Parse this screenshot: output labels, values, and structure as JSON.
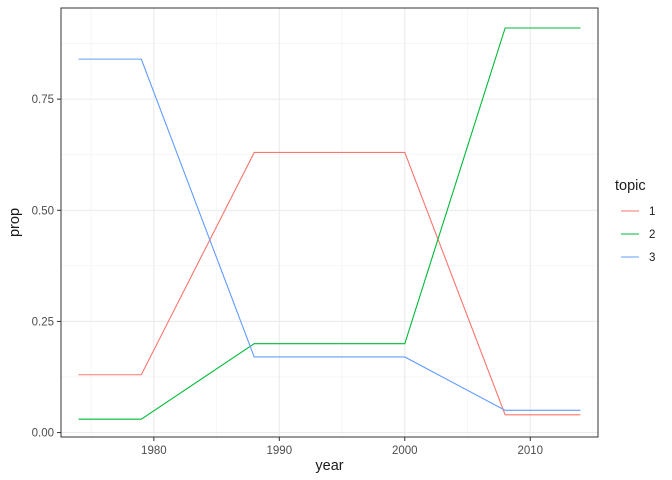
{
  "chart_data": {
    "type": "line",
    "xlabel": "year",
    "ylabel": "prop",
    "xlim": [
      1972.6,
      2015.4
    ],
    "ylim": [
      -0.01,
      0.955
    ],
    "x_ticks": [
      1980,
      1990,
      2000,
      2010
    ],
    "y_ticks": [
      0.0,
      0.25,
      0.5,
      0.75
    ],
    "x_tick_labels": [
      "1980",
      "1990",
      "2000",
      "2010"
    ],
    "y_tick_labels": [
      "0.00",
      "0.25",
      "0.50",
      "0.75"
    ],
    "x": [
      1974,
      1979,
      1988,
      2000,
      2008,
      2014
    ],
    "grid": true,
    "legend": {
      "title": "topic",
      "position": "right"
    },
    "series": [
      {
        "name": "1",
        "color": "#F8766D",
        "values": [
          0.13,
          0.13,
          0.63,
          0.63,
          0.04,
          0.04
        ]
      },
      {
        "name": "2",
        "color": "#00BA38",
        "values": [
          0.03,
          0.03,
          0.2,
          0.2,
          0.91,
          0.91
        ]
      },
      {
        "name": "3",
        "color": "#619CFF",
        "values": [
          0.84,
          0.84,
          0.17,
          0.17,
          0.05,
          0.05
        ]
      }
    ]
  }
}
